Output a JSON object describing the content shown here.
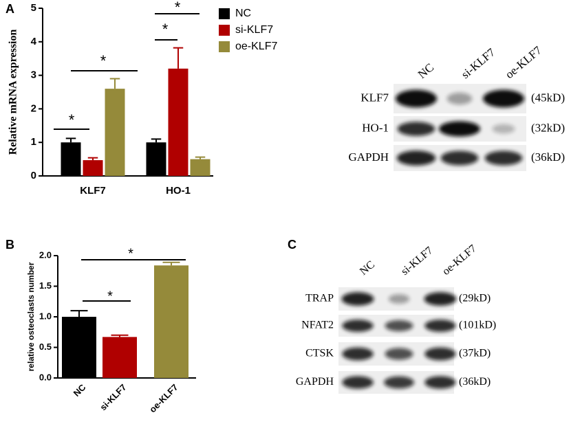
{
  "panel_labels": [
    "A",
    "B",
    "C"
  ],
  "chart_data": [
    {
      "type": "bar",
      "y_label": "Relative mRNA expression",
      "categories": [
        "KLF7",
        "HO-1"
      ],
      "series": [
        {
          "name": "NC",
          "color": "#000000",
          "values": [
            1.0,
            1.0
          ],
          "errors": [
            0.12,
            0.1
          ]
        },
        {
          "name": "si-KLF7",
          "color": "#b00000",
          "values": [
            0.47,
            3.2
          ],
          "errors": [
            0.07,
            0.62
          ]
        },
        {
          "name": "oe-KLF7",
          "color": "#958a3a",
          "values": [
            2.6,
            0.5
          ],
          "errors": [
            0.3,
            0.06
          ]
        }
      ],
      "ylim": [
        0,
        5
      ],
      "yticks": [
        0,
        1,
        2,
        3,
        4,
        5
      ],
      "legend": "right",
      "annotations": [
        "*",
        "*",
        "*",
        "*"
      ]
    },
    {
      "type": "bar",
      "y_label": "relative osteoclasts number",
      "categories": [
        "NC",
        "si-KLF7",
        "oe-KLF7"
      ],
      "values": [
        1.0,
        0.67,
        1.84
      ],
      "errors": [
        0.1,
        0.03,
        0.05
      ],
      "colors": [
        "#000000",
        "#b00000",
        "#958a3a"
      ],
      "ylim": [
        0,
        2
      ],
      "yticks": [
        {
          "value": 0,
          "label": "0.0"
        },
        0.5,
        {
          "value": 1,
          "label": "1.0"
        },
        1.5,
        {
          "value": 2,
          "label": "2.0"
        }
      ],
      "annotations": [
        "*",
        "*"
      ]
    }
  ],
  "blots": [
    {
      "lanes": [
        "NC",
        "si-KLF7",
        "oe-KLF7"
      ],
      "rows": [
        {
          "protein": "KLF7",
          "size": "(45kD)"
        },
        {
          "protein": "HO-1",
          "size": "(32kD)"
        },
        {
          "protein": "GAPDH",
          "size": "(36kD)"
        }
      ]
    },
    {
      "lanes": [
        "NC",
        "si-KLF7",
        "oe-KLF7"
      ],
      "rows": [
        {
          "protein": "TRAP",
          "size": "(29kD)"
        },
        {
          "protein": "NFAT2",
          "size": "(101kD)"
        },
        {
          "protein": "CTSK",
          "size": "(37kD)"
        },
        {
          "protein": "GAPDH",
          "size": "(36kD)"
        }
      ]
    }
  ]
}
